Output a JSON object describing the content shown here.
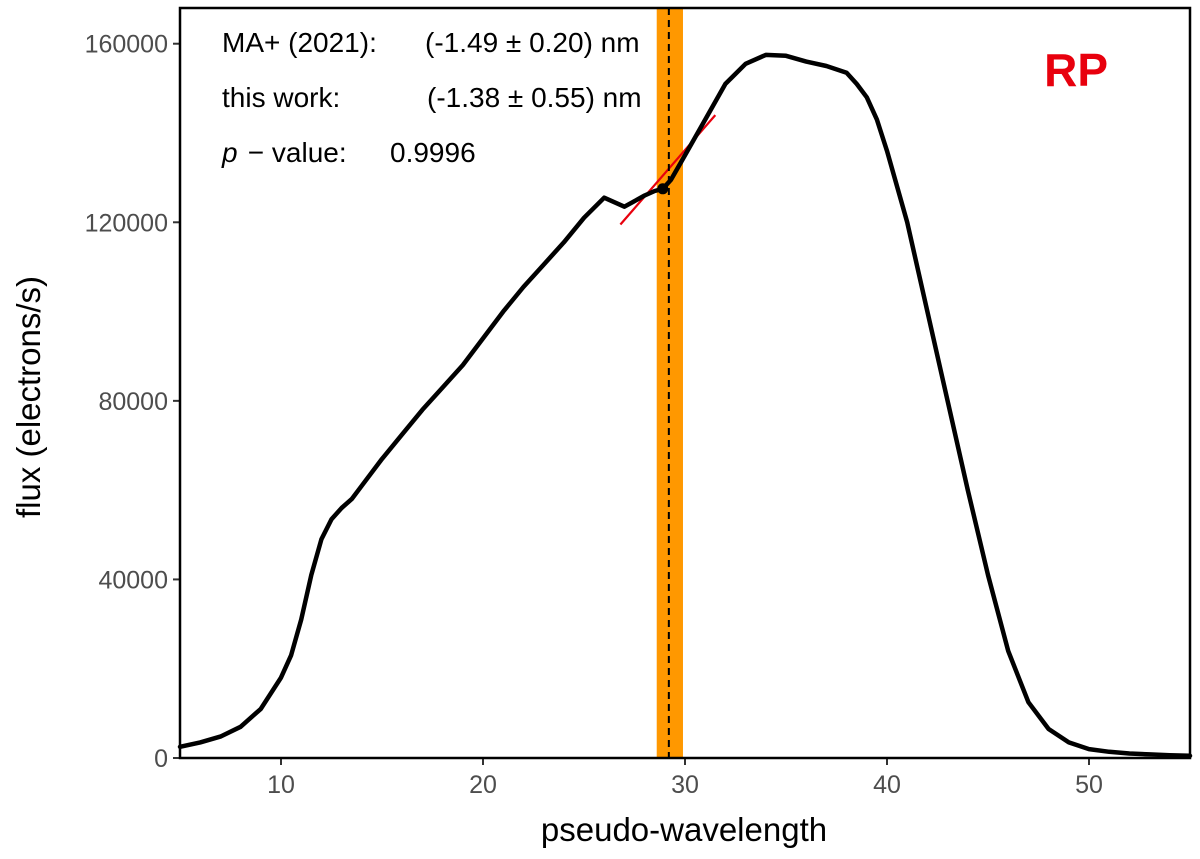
{
  "chart_data": {
    "type": "line",
    "title": "",
    "xlabel": "pseudo-wavelength",
    "ylabel": "flux (electrons/s)",
    "xlim": [
      5,
      55
    ],
    "ylim": [
      0,
      168000
    ],
    "xticks": [
      10,
      20,
      30,
      40,
      50
    ],
    "xtick_labels": [
      "10",
      "20",
      "30",
      "40",
      "50"
    ],
    "yticks": [
      0,
      40000,
      80000,
      120000,
      160000
    ],
    "ytick_labels": [
      "0",
      "40000",
      "80000",
      "120000",
      "160000"
    ],
    "grid": false,
    "band_label": "RP",
    "annotations": {
      "ma_label": "MA+ (2021):",
      "ma_value": "(-1.49 ± 0.20) nm",
      "work_label": "this work:",
      "work_value": "(-1.38 ± 0.55) nm",
      "p_symbol": "p",
      "p_label": " − value:",
      "p_value": "0.9996"
    },
    "highlight": {
      "x_center": 29.2,
      "x_min": 28.6,
      "x_max": 29.9,
      "marker_x": 28.9,
      "marker_y": 127500
    },
    "series": [
      {
        "name": "spectrum",
        "x": [
          5,
          6,
          7,
          8,
          9,
          10,
          10.5,
          11,
          11.5,
          12,
          12.5,
          13,
          13.5,
          14,
          15,
          16,
          17,
          18,
          19,
          20,
          21,
          22,
          23,
          24,
          25,
          26,
          27,
          28,
          28.5,
          28.9,
          29.3,
          30,
          31,
          32,
          33,
          34,
          35,
          36,
          37,
          38,
          38.5,
          39,
          39.5,
          40,
          41,
          42,
          43,
          44,
          45,
          46,
          47,
          48,
          49,
          50,
          51,
          52,
          53,
          54,
          55
        ],
        "y": [
          2500,
          3500,
          4800,
          7000,
          11000,
          18000,
          23000,
          31000,
          41000,
          49000,
          53500,
          56000,
          58000,
          61000,
          67000,
          72500,
          78000,
          83000,
          88000,
          94000,
          100000,
          105500,
          110500,
          115500,
          121000,
          125500,
          123500,
          126000,
          127000,
          127500,
          129500,
          135000,
          143000,
          151000,
          155500,
          157500,
          157300,
          156000,
          155000,
          153500,
          151000,
          148000,
          143000,
          136000,
          120000,
          100000,
          80000,
          60000,
          41000,
          24000,
          12500,
          6500,
          3500,
          2000,
          1400,
          1000,
          800,
          600,
          500
        ]
      },
      {
        "name": "continuum",
        "x": [
          26.8,
          31.5
        ],
        "y": [
          119500,
          144000
        ]
      }
    ],
    "colors": {
      "line": "#000000",
      "continuum": "#e8000d",
      "band_fill": "#ff9800",
      "band_label": "#e8000d",
      "axis": "#000000",
      "tick_text": "#4d4d4d"
    }
  }
}
